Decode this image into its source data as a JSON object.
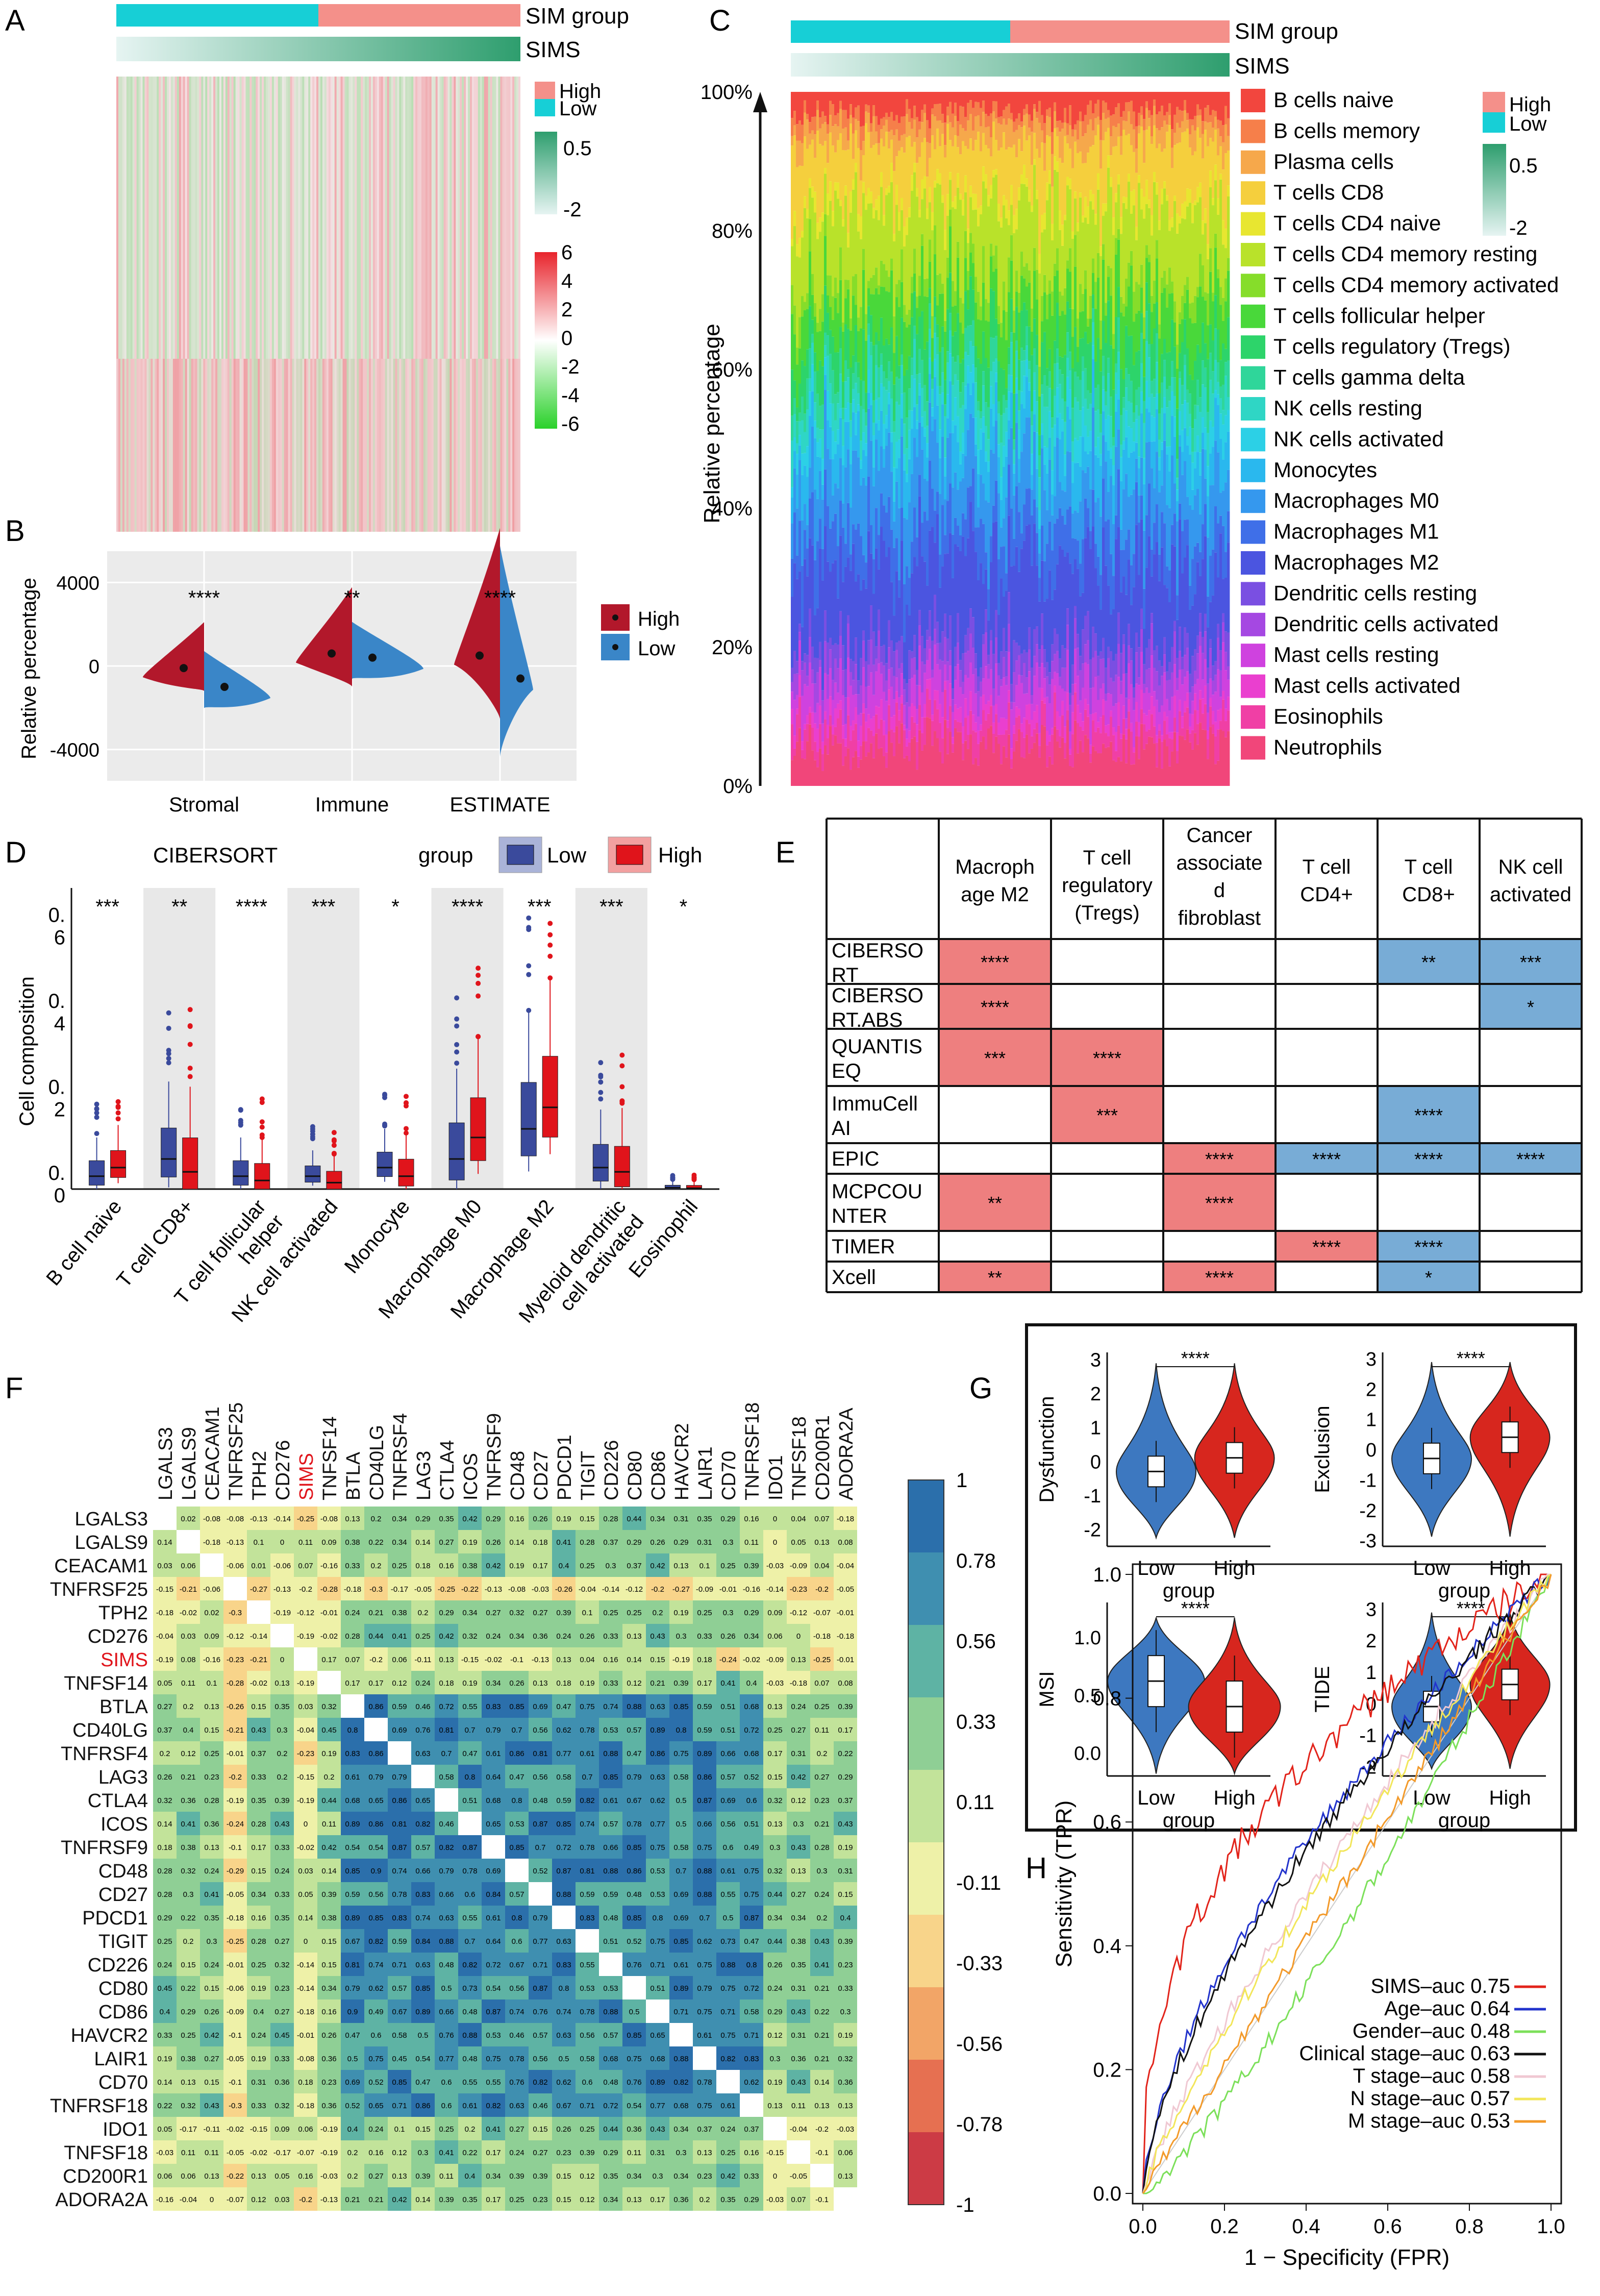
{
  "panels": {
    "a": "A",
    "b": "B",
    "c": "C",
    "d": "D",
    "e": "E",
    "f": "F",
    "g": "G",
    "h": "H"
  },
  "panel_a": {
    "legend_group": "SIM group",
    "legend_sims": "SIMS",
    "legend_high": "High",
    "legend_low": "Low",
    "sims_ticks": [
      "0.5",
      "-2"
    ],
    "heat_ticks": [
      "6",
      "4",
      "2",
      "0",
      "-2",
      "-4",
      "-6"
    ],
    "colors": {
      "high": "#f4908a",
      "low": "#17cfd6",
      "sims_dark": "#2e9e6e",
      "sims_light": "#e3f3f0",
      "pos": "#e8242c",
      "neg": "#2ad12a"
    }
  },
  "panel_b": {
    "chart_data": {
      "type": "split-violin",
      "categories": [
        "Stromal",
        "Immune",
        "ESTIMATE"
      ],
      "ylabel": "Relative percentage",
      "yticks": [
        "4000",
        "0",
        "-4000"
      ],
      "ylim": [
        -5500,
        5500
      ],
      "series": [
        {
          "name": "High",
          "color": "#b2182b",
          "medians": [
            -100,
            600,
            500
          ]
        },
        {
          "name": "Low",
          "color": "#3a86c8",
          "medians": [
            -1000,
            400,
            -600
          ]
        }
      ],
      "significance": [
        "****",
        "**",
        "****"
      ]
    }
  },
  "panel_c": {
    "legend_group": "SIM group",
    "legend_sims": "SIMS",
    "legend_high": "High",
    "legend_low": "Low",
    "sims_ticks": [
      "0.5",
      "-2"
    ],
    "ylabel": "Relative percentage",
    "yticks": [
      "100%",
      "80%",
      "60%",
      "40%",
      "20%",
      "0%"
    ],
    "cell_types": [
      {
        "name": "B cells naive",
        "color": "#f2463e"
      },
      {
        "name": "B cells memory",
        "color": "#f67f4a"
      },
      {
        "name": "Plasma cells",
        "color": "#f6a84b"
      },
      {
        "name": "T cells CD8",
        "color": "#f5cf3d"
      },
      {
        "name": "T cells CD4 naive",
        "color": "#e8e630"
      },
      {
        "name": "T cells CD4 memory resting",
        "color": "#b9e22a"
      },
      {
        "name": "T cells CD4 memory activated",
        "color": "#86dd2a"
      },
      {
        "name": "T cells follicular helper",
        "color": "#49d83a"
      },
      {
        "name": "T cells regulatory (Tregs)",
        "color": "#2dd46a"
      },
      {
        "name": "T cells gamma delta",
        "color": "#2fd69a"
      },
      {
        "name": "NK cells resting",
        "color": "#2fd6c5"
      },
      {
        "name": "NK cells activated",
        "color": "#2cd0e6"
      },
      {
        "name": "Monocytes",
        "color": "#2ab8ee"
      },
      {
        "name": "Macrophages M0",
        "color": "#3598ee"
      },
      {
        "name": "Macrophages M1",
        "color": "#3f6fe8"
      },
      {
        "name": "Macrophages M2",
        "color": "#4b55e0"
      },
      {
        "name": "Dendritic cells resting",
        "color": "#7a4fe2"
      },
      {
        "name": "Dendritic cells activated",
        "color": "#a548e2"
      },
      {
        "name": "Mast cells resting",
        "color": "#cf42df"
      },
      {
        "name": "Mast cells activated",
        "color": "#ea3fcf"
      },
      {
        "name": "Eosinophils",
        "color": "#f03fa5"
      },
      {
        "name": "Neutrophils",
        "color": "#f1467a"
      }
    ]
  },
  "panel_d": {
    "chart_data": {
      "type": "boxplot",
      "title": "CIBERSORT",
      "legend_title": "group",
      "ylabel": "Cell composition",
      "ytick_labels": [
        "0.\n6",
        "0.\n4",
        "0.\n2",
        "0.\n0"
      ],
      "categories": [
        "B cell naive",
        "T cell CD8+",
        "T cell follicular helper",
        "NK cell activated",
        "Monocyte",
        "Macrophage M0",
        "Macrophage M2",
        "Myeloid dendritic cell activated",
        "Eosinophil"
      ],
      "significance": [
        "***",
        "**",
        "****",
        "***",
        "*",
        "****",
        "***",
        "***",
        "*"
      ],
      "series": [
        {
          "name": "Low",
          "color": "#3a4a9c",
          "medians": [
            0.03,
            0.07,
            0.03,
            0.03,
            0.05,
            0.07,
            0.14,
            0.05,
            0.003
          ]
        },
        {
          "name": "High",
          "color": "#e0141b",
          "medians": [
            0.05,
            0.04,
            0.02,
            0.015,
            0.03,
            0.12,
            0.19,
            0.04,
            0.002
          ]
        }
      ],
      "ylim": [
        0,
        0.7
      ]
    }
  },
  "panel_e": {
    "col_headers": [
      "Macroph age M2",
      "T cell regulatory (Tregs)",
      "Cancer associate d fibroblast",
      "T cell CD4+",
      "T cell CD8+",
      "NK cell activated"
    ],
    "rows": [
      {
        "label": "CIBERSO RT",
        "cells": [
          "****",
          "",
          "",
          "",
          "**",
          "***"
        ],
        "types": [
          "r",
          "",
          "",
          "",
          "b",
          "b"
        ]
      },
      {
        "label": "CIBERSO RT.ABS",
        "cells": [
          "****",
          "",
          "",
          "",
          "",
          "*"
        ],
        "types": [
          "r",
          "",
          "",
          "",
          "",
          "b"
        ]
      },
      {
        "label": "QUANTIS EQ",
        "cells": [
          "***",
          "****",
          "",
          "",
          "",
          ""
        ],
        "types": [
          "r",
          "r",
          "",
          "",
          "",
          ""
        ]
      },
      {
        "label": "ImmuCell AI",
        "cells": [
          "",
          "***",
          "",
          "",
          "****",
          ""
        ],
        "types": [
          "",
          "r",
          "",
          "",
          "b",
          ""
        ]
      },
      {
        "label": "EPIC",
        "cells": [
          "",
          "",
          "****",
          "****",
          "****",
          "****"
        ],
        "types": [
          "",
          "",
          "r",
          "b",
          "b",
          "b"
        ]
      },
      {
        "label": "MCPCOU NTER",
        "cells": [
          "**",
          "",
          "****",
          "",
          "",
          ""
        ],
        "types": [
          "r",
          "",
          "r",
          "",
          "",
          ""
        ]
      },
      {
        "label": "TIMER",
        "cells": [
          "",
          "",
          "",
          "****",
          "****",
          ""
        ],
        "types": [
          "",
          "",
          "",
          "r",
          "b",
          ""
        ]
      },
      {
        "label": "Xcell",
        "cells": [
          "**",
          "",
          "****",
          "",
          "*",
          ""
        ],
        "types": [
          "r",
          "",
          "r",
          "",
          "b",
          ""
        ]
      }
    ],
    "colors": {
      "r": "#ee7f7f",
      "b": "#78acd6"
    }
  },
  "panel_f": {
    "genes": [
      "LGALS3",
      "LGALS9",
      "CEACAM1",
      "TNFRSF25",
      "TPH2",
      "CD276",
      "SIMS",
      "TNFSF14",
      "BTLA",
      "CD40LG",
      "TNFRSF4",
      "LAG3",
      "CTLA4",
      "ICOS",
      "TNFRSF9",
      "CD48",
      "CD27",
      "PDCD1",
      "TIGIT",
      "CD226",
      "CD80",
      "CD86",
      "HAVCR2",
      "LAIR1",
      "CD70",
      "TNFRSF18",
      "IDO1",
      "TNFSF18",
      "CD200R1",
      "ADORA2A"
    ],
    "highlight": "SIMS",
    "scale_ticks": [
      "1",
      "0.78",
      "0.56",
      "0.33",
      "0.11",
      "-0.11",
      "-0.33",
      "-0.56",
      "-0.78",
      "-1"
    ],
    "scale_colors": [
      "#2b6fab",
      "#3f8fb0",
      "#5eb3a4",
      "#8fcf95",
      "#c2e39a",
      "#eef1a8",
      "#f8d48a",
      "#f2a567",
      "#e67051",
      "#cc3b45"
    ]
  },
  "panel_g": {
    "chart_data": [
      {
        "type": "violin",
        "ylabel": "Dysfunction",
        "xlabel": "group",
        "categories": [
          "Low",
          "High"
        ],
        "yticks": [
          "3",
          "2",
          "1",
          "0",
          "-1",
          "-2"
        ],
        "ylim": [
          -2.5,
          3.2
        ],
        "medians": [
          -0.3,
          0.1
        ],
        "significance": "****"
      },
      {
        "type": "violin",
        "ylabel": "Exclusion",
        "xlabel": "group",
        "categories": [
          "Low",
          "High"
        ],
        "yticks": [
          "3",
          "2",
          "1",
          "0",
          "-1",
          "-2",
          "-3"
        ],
        "ylim": [
          -3.2,
          3.2
        ],
        "medians": [
          -0.3,
          0.4
        ],
        "significance": "****"
      },
      {
        "type": "violin",
        "ylabel": "MSI",
        "xlabel": "group",
        "categories": [
          "Low",
          "High"
        ],
        "yticks": [
          "1.0",
          "0.5",
          "0.0"
        ],
        "ylim": [
          -0.2,
          1.3
        ],
        "medians": [
          0.62,
          0.4
        ],
        "significance": "****"
      },
      {
        "type": "violin",
        "ylabel": "TIDE",
        "xlabel": "group",
        "categories": [
          "Low",
          "High"
        ],
        "yticks": [
          "3",
          "2",
          "1",
          "0",
          "-1",
          "-2"
        ],
        "ylim": [
          -2.3,
          3.2
        ],
        "medians": [
          -0.1,
          0.6
        ],
        "significance": "****"
      }
    ],
    "colors": {
      "low": "#3d78c0",
      "high": "#d7261e"
    }
  },
  "panel_h": {
    "chart_data": {
      "type": "line",
      "xlabel": "1 − Specificity (FPR)",
      "ylabel": "Sensitivity (TPR)",
      "xticks": [
        "0.0",
        "0.2",
        "0.4",
        "0.6",
        "0.8",
        "1.0"
      ],
      "yticks": [
        "0.0",
        "0.2",
        "0.4",
        "0.6",
        "0.8",
        "1.0"
      ],
      "series": [
        {
          "name": "SIMS–auc 0.75",
          "color": "#e2231a",
          "auc": 0.75
        },
        {
          "name": "Age–auc 0.64",
          "color": "#2233cc",
          "auc": 0.64
        },
        {
          "name": "Gender–auc 0.48",
          "color": "#7ce05a",
          "auc": 0.48
        },
        {
          "name": "Clinical stage–auc 0.63",
          "color": "#111111",
          "auc": 0.63
        },
        {
          "name": "T stage–auc 0.58",
          "color": "#f0c8d2",
          "auc": 0.58
        },
        {
          "name": "N stage–auc 0.57",
          "color": "#f2e65a",
          "auc": 0.57
        },
        {
          "name": "M stage–auc 0.53",
          "color": "#f39a2a",
          "auc": 0.53
        }
      ]
    }
  }
}
